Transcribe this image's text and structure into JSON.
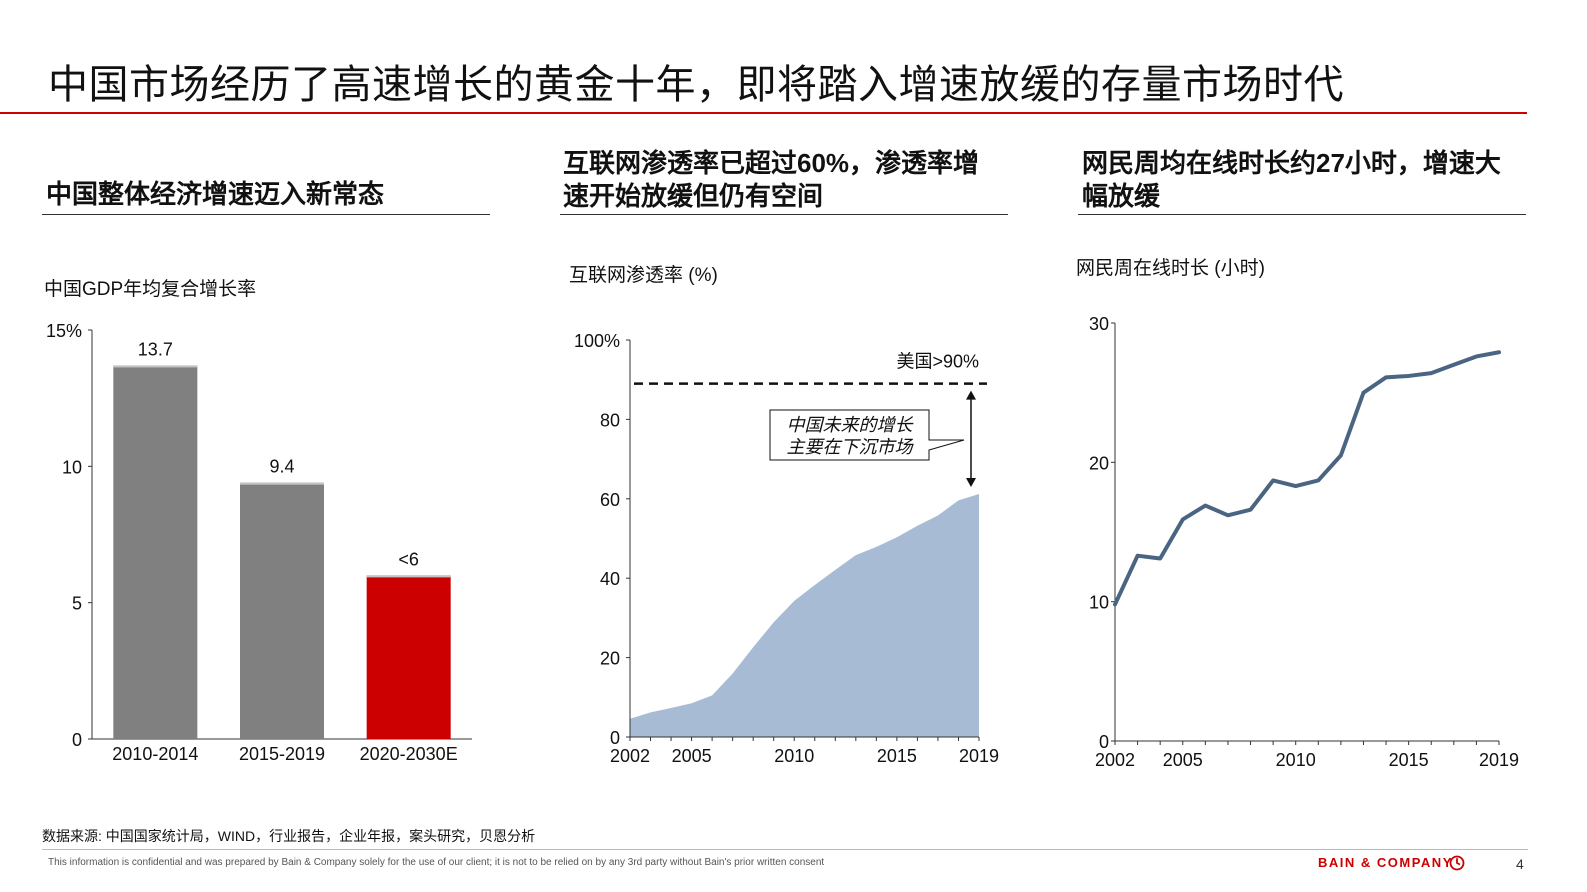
{
  "title": "中国市场经历了高速增长的黄金十年，即将踏入增速放缓的存量市场时代",
  "panels": [
    {
      "heading": "中国整体经济增速迈入新常态",
      "chart_label": "中国GDP年均复合增长率"
    },
    {
      "heading_line1": "互联网渗透率已超过60%，渗透率增",
      "heading_line2": "速开始放缓但仍有空间",
      "chart_label": "互联网渗透率 (%)"
    },
    {
      "heading_line1": "网民周均在线时长约27小时，增速大",
      "heading_line2": "幅放缓",
      "chart_label": "网民周在线时长 (小时)"
    }
  ],
  "chart_data": [
    {
      "type": "bar",
      "title": "中国GDP年均复合增长率",
      "categories": [
        "2010-2014",
        "2015-2019",
        "2020-2030E"
      ],
      "values": [
        13.7,
        9.4,
        6
      ],
      "data_labels": [
        "13.7",
        "9.4",
        "<6"
      ],
      "bar_colors": [
        "#808080",
        "#808080",
        "#cc0000"
      ],
      "ylim": [
        0,
        15
      ],
      "yticks": [
        0,
        5,
        10,
        15
      ],
      "ytick_labels": [
        "0",
        "5",
        "10",
        "15%"
      ]
    },
    {
      "type": "area",
      "title": "互联网渗透率 (%)",
      "x": [
        2002,
        2003,
        2004,
        2005,
        2006,
        2007,
        2008,
        2009,
        2010,
        2011,
        2012,
        2013,
        2014,
        2015,
        2016,
        2017,
        2018,
        2019
      ],
      "values": [
        4.6,
        6.2,
        7.3,
        8.5,
        10.5,
        16,
        22.6,
        28.9,
        34.3,
        38.3,
        42.1,
        45.8,
        47.9,
        50.3,
        53.2,
        55.8,
        59.6,
        61.2
      ],
      "fill_color": "#a7bcd4",
      "ylim": [
        0,
        100
      ],
      "yticks": [
        0,
        20,
        40,
        60,
        80,
        100
      ],
      "ytick_labels": [
        "0",
        "20",
        "40",
        "60",
        "80",
        "100%"
      ],
      "xticks": [
        2002,
        2005,
        2010,
        2015,
        2019
      ],
      "xtick_labels": [
        "2002",
        "2005",
        "2010",
        "2015",
        "2019"
      ],
      "reference_line": {
        "value": 89,
        "label": "美国>90%"
      },
      "callout_line1": "中国未来的增长",
      "callout_line2": "主要在下沉市场"
    },
    {
      "type": "line",
      "title": "网民周在线时长 (小时)",
      "x": [
        2002,
        2003,
        2004,
        2005,
        2006,
        2007,
        2008,
        2009,
        2010,
        2011,
        2012,
        2013,
        2014,
        2015,
        2016,
        2017,
        2018,
        2019
      ],
      "values": [
        9.8,
        13.3,
        13.1,
        15.9,
        16.9,
        16.2,
        16.6,
        18.7,
        18.3,
        18.7,
        20.5,
        25,
        26.1,
        26.2,
        26.4,
        27,
        27.6,
        27.9
      ],
      "line_color": "#4a6582",
      "ylim": [
        0,
        30
      ],
      "yticks": [
        0,
        10,
        20,
        30
      ],
      "ytick_labels": [
        "0",
        "10",
        "20",
        "30"
      ],
      "xticks": [
        2002,
        2005,
        2010,
        2015,
        2019
      ],
      "xtick_labels": [
        "2002",
        "2005",
        "2010",
        "2015",
        "2019"
      ]
    }
  ],
  "footer": {
    "source": "数据来源: 中国国家统计局，WIND，行业报告，企业年报，案头研究，贝恩分析",
    "disclaimer": "This information is confidential and was prepared by Bain & Company solely for the use of our client; it is not to be relied on by any 3rd party without Bain's prior written consent",
    "brand": "BAIN & COMPANY",
    "brand_icon": "bain-logo-icon",
    "page_number": "4"
  },
  "colors": {
    "accent": "#cc0000"
  }
}
